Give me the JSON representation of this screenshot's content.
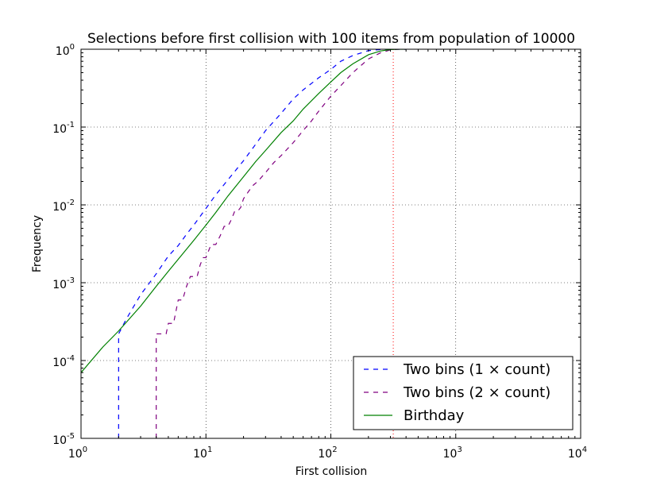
{
  "chart_data": {
    "type": "line",
    "title": "Selections before first collision with 100 items from population of 10000",
    "xlabel": "First collision",
    "ylabel": "Frequency",
    "xscale": "log",
    "yscale": "log",
    "xlim": [
      1,
      10000
    ],
    "ylim": [
      1e-05,
      1
    ],
    "grid": true,
    "legend_position": "lower-right",
    "x_ticks": [
      {
        "value": 1,
        "base": "10",
        "exp": "0"
      },
      {
        "value": 10,
        "base": "10",
        "exp": "1"
      },
      {
        "value": 100,
        "base": "10",
        "exp": "2"
      },
      {
        "value": 1000,
        "base": "10",
        "exp": "3"
      },
      {
        "value": 10000,
        "base": "10",
        "exp": "4"
      }
    ],
    "y_ticks": [
      {
        "value": 1e-05,
        "base": "10",
        "exp": "-5"
      },
      {
        "value": 0.0001,
        "base": "10",
        "exp": "-4"
      },
      {
        "value": 0.001,
        "base": "10",
        "exp": "-3"
      },
      {
        "value": 0.01,
        "base": "10",
        "exp": "-2"
      },
      {
        "value": 0.1,
        "base": "10",
        "exp": "-1"
      },
      {
        "value": 1,
        "base": "10",
        "exp": "0"
      }
    ],
    "vline": {
      "x": 316,
      "color": "#ff0000"
    },
    "series": [
      {
        "name": "Two bins (1 × count)",
        "color": "#0000ff",
        "style": "dashed",
        "points": [
          [
            2,
            1e-05
          ],
          [
            2,
            0.00022
          ],
          [
            2.3,
            0.00034
          ],
          [
            3,
            0.0007
          ],
          [
            4,
            0.0013
          ],
          [
            5,
            0.0022
          ],
          [
            6,
            0.003
          ],
          [
            7,
            0.0042
          ],
          [
            8,
            0.0055
          ],
          [
            10,
            0.009
          ],
          [
            12,
            0.0135
          ],
          [
            15,
            0.021
          ],
          [
            20,
            0.037
          ],
          [
            25,
            0.06
          ],
          [
            30,
            0.09
          ],
          [
            40,
            0.15
          ],
          [
            50,
            0.23
          ],
          [
            60,
            0.3
          ],
          [
            80,
            0.43
          ],
          [
            100,
            0.55
          ],
          [
            120,
            0.7
          ],
          [
            150,
            0.83
          ],
          [
            200,
            0.96
          ],
          [
            250,
            0.99
          ],
          [
            316,
            1.0
          ],
          [
            400,
            1.0
          ]
        ]
      },
      {
        "name": "Two bins (2 × count)",
        "color": "#800080",
        "style": "dashed",
        "points": [
          [
            4,
            1e-05
          ],
          [
            4,
            0.00022
          ],
          [
            4.8,
            0.00022
          ],
          [
            5,
            0.0003
          ],
          [
            5.5,
            0.0003
          ],
          [
            6,
            0.0006
          ],
          [
            6.5,
            0.0006
          ],
          [
            7,
            0.0009
          ],
          [
            7.5,
            0.0012
          ],
          [
            8.5,
            0.0012
          ],
          [
            9,
            0.0017
          ],
          [
            9.5,
            0.0021
          ],
          [
            10,
            0.0021
          ],
          [
            11,
            0.0031
          ],
          [
            12,
            0.0031
          ],
          [
            13,
            0.004
          ],
          [
            14,
            0.0053
          ],
          [
            15,
            0.0053
          ],
          [
            16,
            0.0065
          ],
          [
            17,
            0.0083
          ],
          [
            18,
            0.0083
          ],
          [
            19,
            0.0093
          ],
          [
            20,
            0.012
          ],
          [
            22,
            0.015
          ],
          [
            24,
            0.018
          ],
          [
            26,
            0.02
          ],
          [
            30,
            0.026
          ],
          [
            35,
            0.035
          ],
          [
            40,
            0.043
          ],
          [
            50,
            0.063
          ],
          [
            60,
            0.09
          ],
          [
            70,
            0.12
          ],
          [
            80,
            0.16
          ],
          [
            100,
            0.25
          ],
          [
            120,
            0.34
          ],
          [
            150,
            0.5
          ],
          [
            200,
            0.75
          ],
          [
            250,
            0.9
          ],
          [
            300,
            0.98
          ],
          [
            350,
            1.0
          ],
          [
            400,
            1.0
          ]
        ]
      },
      {
        "name": "Birthday",
        "color": "#008000",
        "style": "solid",
        "points": [
          [
            1,
            7e-05
          ],
          [
            1.5,
            0.00015
          ],
          [
            2,
            0.00024
          ],
          [
            3,
            0.0005
          ],
          [
            4,
            0.0009
          ],
          [
            5,
            0.0014
          ],
          [
            6,
            0.002
          ],
          [
            8,
            0.0035
          ],
          [
            10,
            0.0055
          ],
          [
            12,
            0.008
          ],
          [
            15,
            0.013
          ],
          [
            20,
            0.023
          ],
          [
            25,
            0.036
          ],
          [
            30,
            0.05
          ],
          [
            40,
            0.085
          ],
          [
            50,
            0.12
          ],
          [
            60,
            0.17
          ],
          [
            80,
            0.27
          ],
          [
            100,
            0.38
          ],
          [
            120,
            0.5
          ],
          [
            150,
            0.65
          ],
          [
            200,
            0.85
          ],
          [
            250,
            0.95
          ],
          [
            300,
            0.99
          ],
          [
            350,
            1.0
          ],
          [
            400,
            1.0
          ]
        ]
      }
    ]
  }
}
